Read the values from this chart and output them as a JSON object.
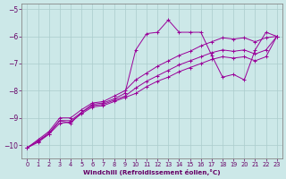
{
  "xlabel": "Windchill (Refroidissement éolien,°C)",
  "ylabel": "",
  "bg_color": "#cce8e8",
  "line_color": "#990099",
  "x_hours": [
    0,
    1,
    2,
    3,
    4,
    5,
    6,
    7,
    8,
    9,
    10,
    11,
    12,
    13,
    14,
    15,
    16,
    17,
    18,
    19,
    20,
    21,
    22,
    23
  ],
  "y_main": [
    -10.1,
    -9.9,
    -9.6,
    -9.1,
    -9.2,
    -8.8,
    -8.5,
    -8.45,
    -8.3,
    -8.1,
    -6.5,
    -5.9,
    -5.85,
    -5.4,
    -5.85,
    -5.85,
    -5.85,
    -6.7,
    -7.5,
    -7.4,
    -7.6,
    -6.5,
    -5.85,
    -6.0
  ],
  "y_line2": [
    -10.1,
    -9.85,
    -9.6,
    -9.2,
    -9.15,
    -8.85,
    -8.6,
    -8.55,
    -8.4,
    -8.25,
    -8.1,
    -7.85,
    -7.65,
    -7.5,
    -7.3,
    -7.15,
    -7.0,
    -6.85,
    -6.75,
    -6.8,
    -6.75,
    -6.9,
    -6.75,
    -6.0
  ],
  "y_line3": [
    -10.1,
    -9.85,
    -9.55,
    -9.1,
    -9.1,
    -8.8,
    -8.55,
    -8.5,
    -8.35,
    -8.2,
    -7.9,
    -7.65,
    -7.45,
    -7.25,
    -7.05,
    -6.9,
    -6.75,
    -6.6,
    -6.5,
    -6.55,
    -6.5,
    -6.65,
    -6.5,
    -6.0
  ],
  "y_line4": [
    -10.1,
    -9.8,
    -9.5,
    -9.0,
    -9.0,
    -8.7,
    -8.45,
    -8.4,
    -8.2,
    -8.0,
    -7.6,
    -7.35,
    -7.1,
    -6.9,
    -6.7,
    -6.55,
    -6.35,
    -6.2,
    -6.05,
    -6.1,
    -6.05,
    -6.2,
    -6.05,
    -6.0
  ],
  "ylim": [
    -10.5,
    -4.8
  ],
  "xlim": [
    -0.5,
    23.5
  ],
  "yticks": [
    -10,
    -9,
    -8,
    -7,
    -6,
    -5
  ],
  "xticks": [
    0,
    1,
    2,
    3,
    4,
    5,
    6,
    7,
    8,
    9,
    10,
    11,
    12,
    13,
    14,
    15,
    16,
    17,
    18,
    19,
    20,
    21,
    22,
    23
  ],
  "grid_color": "#aacccc",
  "tick_color": "#660066",
  "label_color": "#660066",
  "spine_color": "#888888"
}
